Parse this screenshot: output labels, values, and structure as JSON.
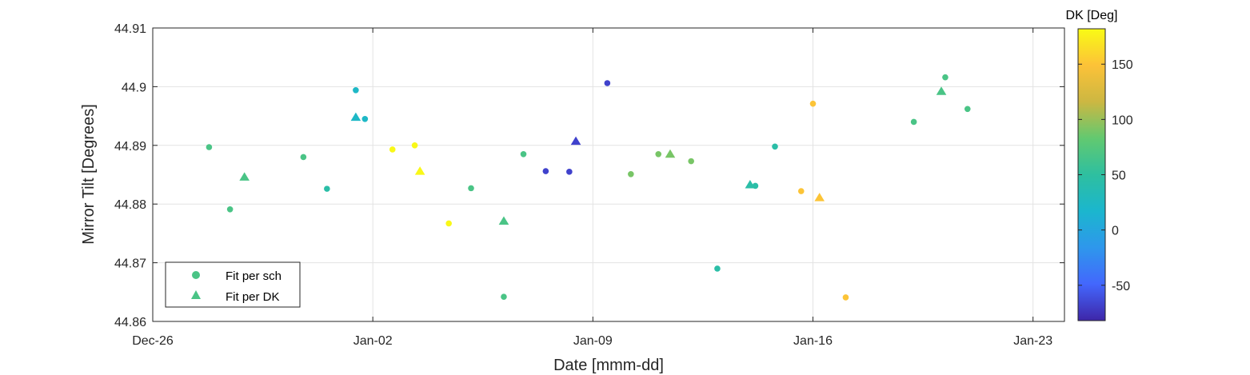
{
  "chart_data": {
    "type": "scatter",
    "xlabel": "Date [mmm-dd]",
    "ylabel": "Mirror Tilt [Degrees]",
    "xlim": [
      "Dec-26",
      "Jan-24"
    ],
    "ylim": [
      44.86,
      44.91
    ],
    "x_ticks": [
      "Dec-26",
      "Jan-02",
      "Jan-09",
      "Jan-16",
      "Jan-23"
    ],
    "y_ticks": [
      "44.86",
      "44.87",
      "44.88",
      "44.89",
      "44.9",
      "44.91"
    ],
    "grid": true,
    "legend": {
      "placement": "bottom-left",
      "entries": [
        "Fit per sch",
        "Fit per DK"
      ]
    },
    "colorbar": {
      "title": "DK [Deg]",
      "limits": [
        -82,
        182
      ],
      "ticks": [
        "-50",
        "0",
        "50",
        "100",
        "150"
      ],
      "colormap": [
        "#3e26a8",
        "#4367fd",
        "#2e97ec",
        "#1bb6ce",
        "#2ebfa0",
        "#62c970",
        "#ccb742",
        "#fcc238",
        "#f9fb15"
      ]
    },
    "series": [
      {
        "name": "Fit per sch",
        "marker": "circle",
        "points": [
          {
            "x": "Dec-27 19:00",
            "y": 44.8897,
            "dk": 68
          },
          {
            "x": "Dec-28 11:00",
            "y": 44.8791,
            "dk": 68
          },
          {
            "x": "Dec-30 19:00",
            "y": 44.888,
            "dk": 68
          },
          {
            "x": "Dec-31 13:00",
            "y": 44.8826,
            "dk": 45
          },
          {
            "x": "Jan-01 11:00",
            "y": 44.8994,
            "dk": 23
          },
          {
            "x": "Jan-01 18:00",
            "y": 44.8945,
            "dk": 23
          },
          {
            "x": "Jan-02 15:00",
            "y": 44.8893,
            "dk": 180
          },
          {
            "x": "Jan-03 08:00",
            "y": 44.89,
            "dk": 180
          },
          {
            "x": "Jan-04 10:00",
            "y": 44.8767,
            "dk": 180
          },
          {
            "x": "Jan-05 03:00",
            "y": 44.8827,
            "dk": 68
          },
          {
            "x": "Jan-06 04:00",
            "y": 44.8642,
            "dk": 68
          },
          {
            "x": "Jan-06 19:00",
            "y": 44.8885,
            "dk": 68
          },
          {
            "x": "Jan-07 12:00",
            "y": 44.8856,
            "dk": -68
          },
          {
            "x": "Jan-08 06:00",
            "y": 44.8855,
            "dk": -68
          },
          {
            "x": "Jan-09 11:00",
            "y": 44.9006,
            "dk": -68
          },
          {
            "x": "Jan-10 05:00",
            "y": 44.8851,
            "dk": 90
          },
          {
            "x": "Jan-11 02:00",
            "y": 44.8885,
            "dk": 90
          },
          {
            "x": "Jan-12 03:00",
            "y": 44.8873,
            "dk": 90
          },
          {
            "x": "Jan-12 23:00",
            "y": 44.869,
            "dk": 45
          },
          {
            "x": "Jan-14 04:00",
            "y": 44.8831,
            "dk": 45
          },
          {
            "x": "Jan-14 19:00",
            "y": 44.8898,
            "dk": 45
          },
          {
            "x": "Jan-15 15:00",
            "y": 44.8822,
            "dk": 150
          },
          {
            "x": "Jan-16 00:00",
            "y": 44.8971,
            "dk": 150
          },
          {
            "x": "Jan-17 01:00",
            "y": 44.8641,
            "dk": 150
          },
          {
            "x": "Jan-19 05:00",
            "y": 44.894,
            "dk": 68
          },
          {
            "x": "Jan-20 05:00",
            "y": 44.9016,
            "dk": 68
          },
          {
            "x": "Jan-20 22:00",
            "y": 44.8962,
            "dk": 68
          }
        ]
      },
      {
        "name": "Fit per DK",
        "marker": "triangle",
        "points": [
          {
            "x": "Dec-28 22:00",
            "y": 44.8846,
            "dk": 68
          },
          {
            "x": "Jan-01 11:00",
            "y": 44.8948,
            "dk": 23
          },
          {
            "x": "Jan-03 12:00",
            "y": 44.8856,
            "dk": 180
          },
          {
            "x": "Jan-06 04:00",
            "y": 44.8771,
            "dk": 68
          },
          {
            "x": "Jan-08 11:00",
            "y": 44.8907,
            "dk": -68
          },
          {
            "x": "Jan-11 11:00",
            "y": 44.8885,
            "dk": 90
          },
          {
            "x": "Jan-14 00:00",
            "y": 44.8833,
            "dk": 45
          },
          {
            "x": "Jan-16 05:00",
            "y": 44.8811,
            "dk": 150
          },
          {
            "x": "Jan-20 02:00",
            "y": 44.8992,
            "dk": 68
          }
        ]
      }
    ]
  }
}
